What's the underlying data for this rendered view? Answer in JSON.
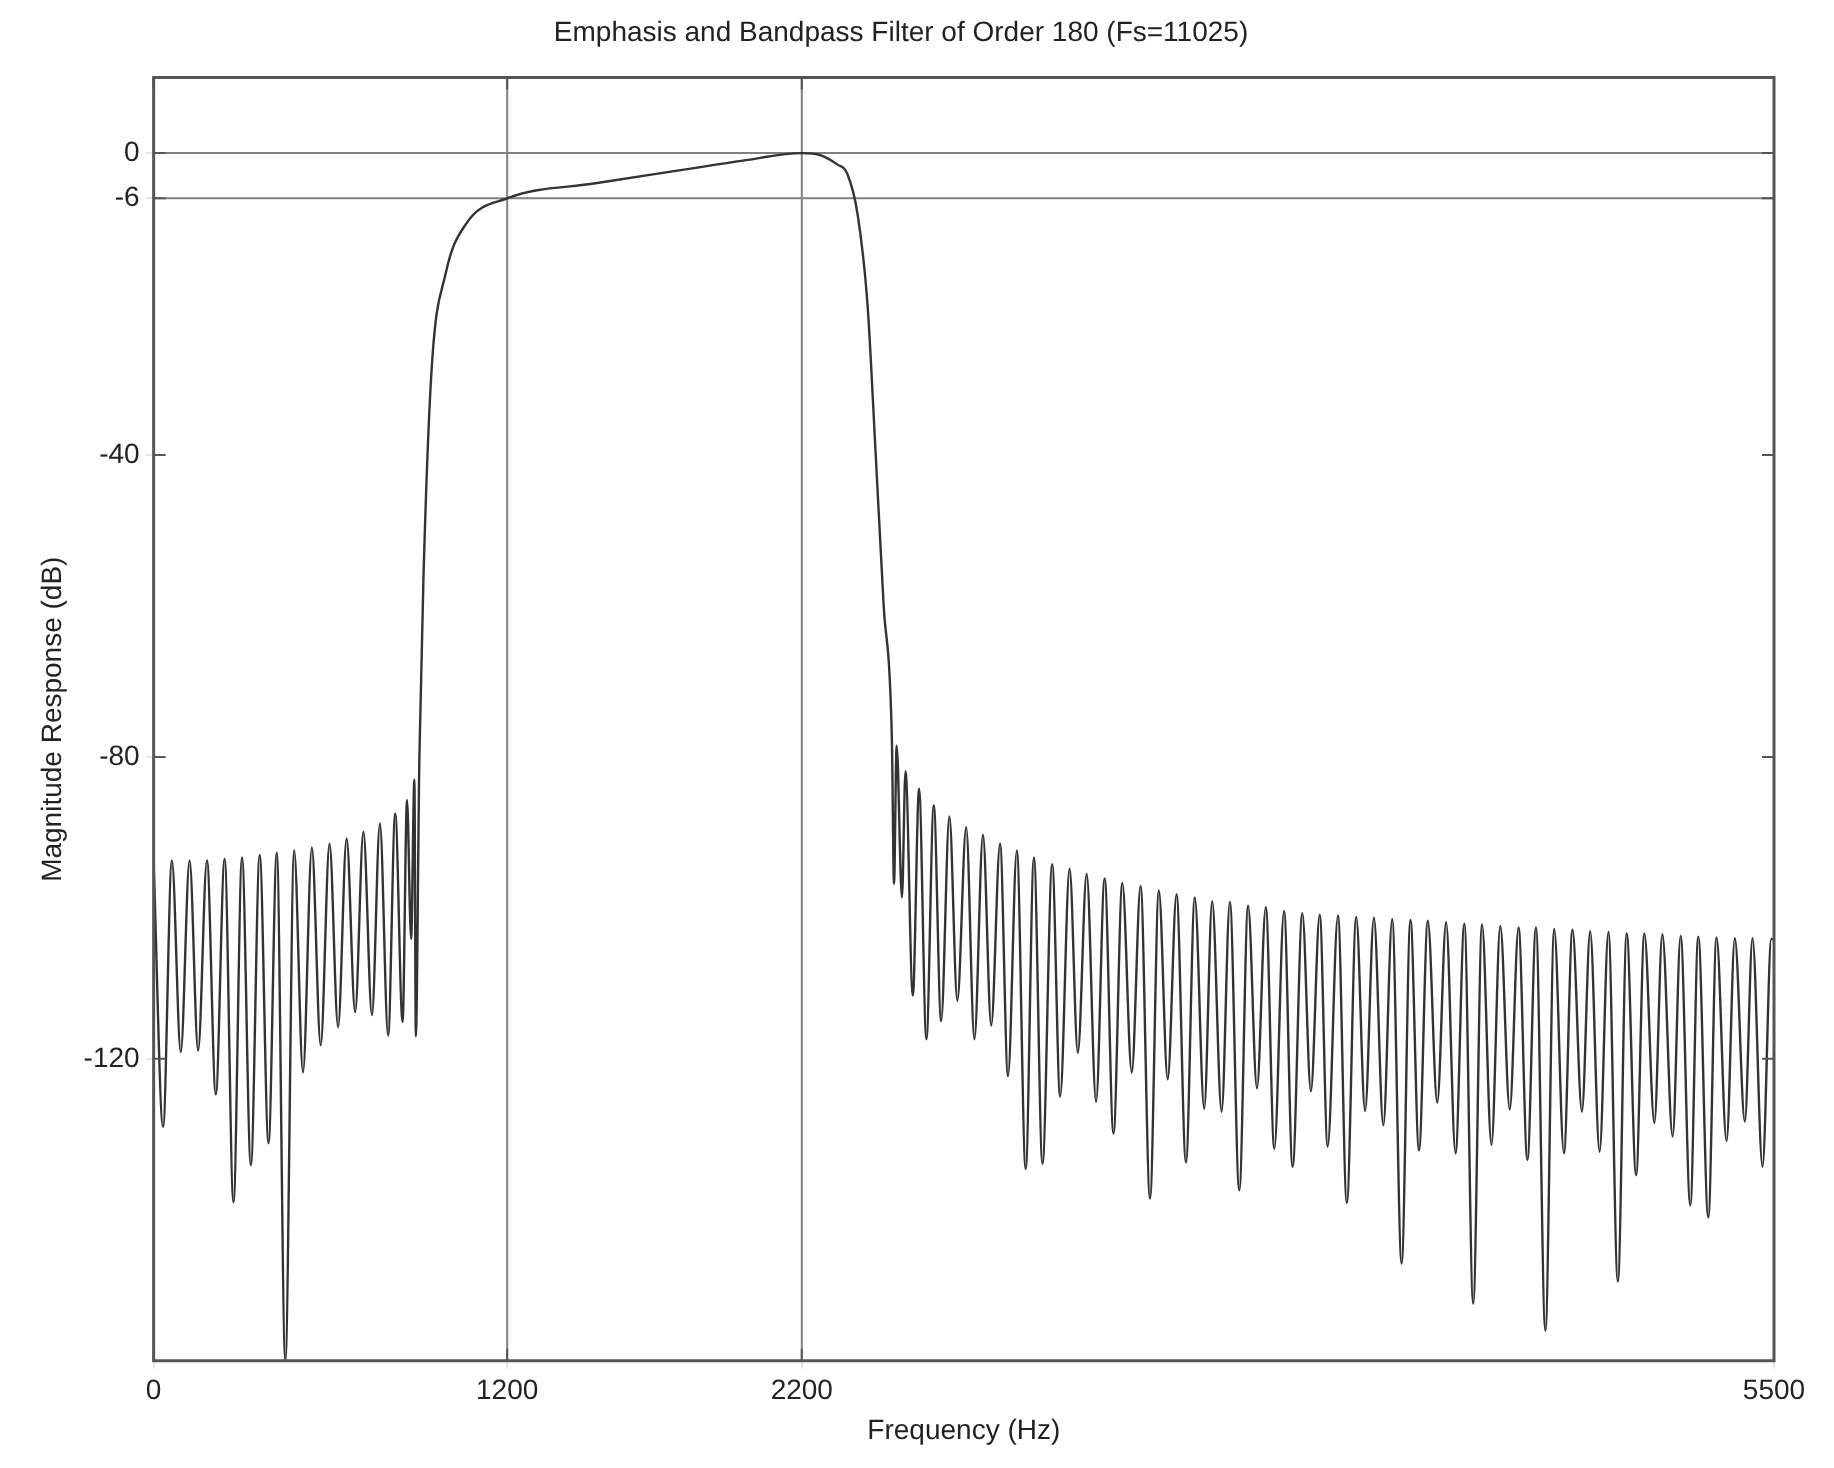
{
  "chart_data": {
    "type": "line",
    "title": "Emphasis and Bandpass Filter of Order 180 (Fs=11025)",
    "xlabel": "Frequency (Hz)",
    "ylabel": "Magnitude Response (dB)",
    "xlim": [
      0,
      5500
    ],
    "xticks": [
      0,
      1200,
      2200,
      5500
    ],
    "ylim": [
      -160,
      10
    ],
    "yticks": [
      0,
      -6,
      -40,
      -80,
      -120
    ],
    "grid": false,
    "marker": "none",
    "line_style": "solid",
    "ref_lines": [
      {
        "axis": "y",
        "value": 0,
        "color": "#808080"
      },
      {
        "axis": "y",
        "value": -6,
        "color": "#808080"
      },
      {
        "axis": "x",
        "value": 1200,
        "color": "#808080"
      },
      {
        "axis": "x",
        "value": 2200,
        "color": "#808080"
      }
    ],
    "series": [
      {
        "color": "#333333",
        "x": [
          0,
          32,
          62,
          92,
          122,
          151,
          181,
          211,
          241,
          271,
          300,
          330,
          360,
          390,
          418,
          447,
          477,
          507,
          537,
          567,
          597,
          626,
          655,
          684,
          712,
          741,
          768,
          796,
          820,
          845,
          860,
          874,
          885,
          890,
          902,
          916,
          943,
          991,
          1060,
          1200,
          1500,
          1800,
          2000,
          2200,
          2265,
          2320,
          2354,
          2389,
          2423,
          2451,
          2478,
          2506,
          2513,
          2522,
          2540,
          2552,
          2577,
          2598,
          2623,
          2648,
          2673,
          2701,
          2728,
          2758,
          2786,
          2815,
          2843,
          2873,
          2900,
          2930,
          2960,
          2988,
          3017,
          3050,
          3077,
          3109,
          3137,
          3167,
          3199,
          3228,
          3258,
          3288,
          3320,
          3350,
          3382,
          3412,
          3442,
          3472,
          3504,
          3534,
          3566,
          3593,
          3625,
          3653,
          3685,
          3715,
          3745,
          3775,
          3804,
          3837,
          3866,
          3899,
          3928,
          3958,
          3985,
          4020,
          4050,
          4082,
          4112,
          4142,
          4174,
          4204,
          4236,
          4266,
          4295,
          4325,
          4357,
          4387,
          4419,
          4449,
          4479,
          4509,
          4541,
          4571,
          4603,
          4633,
          4663,
          4692,
          4724,
          4754,
          4787,
          4816,
          4848,
          4876,
          4908,
          4938,
          4970,
          5000,
          5032,
          5060,
          5094,
          5121,
          5156,
          5183,
          5216,
          5243,
          5277,
          5305,
          5339,
          5367,
          5401,
          5427,
          5461,
          5491,
          5500
        ],
        "values": [
          -94.1,
          -129.0,
          -93.7,
          -119.1,
          -93.7,
          -118.9,
          -93.7,
          -124.7,
          -93.5,
          -139.0,
          -93.3,
          -134.1,
          -93.0,
          -131.2,
          -92.7,
          -160,
          -92.4,
          -121.8,
          -92.0,
          -118.2,
          -91.5,
          -115.8,
          -90.8,
          -113.8,
          -89.9,
          -114.2,
          -88.8,
          -116.9,
          -87.5,
          -115.1,
          -85.7,
          -104.1,
          -83.0,
          -117.0,
          -80,
          -56,
          -29,
          -16,
          -9.4,
          -6,
          -4,
          -2.2,
          -1,
          0,
          -0.3,
          -1.5,
          -2.7,
          -8,
          -20,
          -40,
          -60,
          -78,
          -96.8,
          -78.5,
          -98.6,
          -81.9,
          -111.6,
          -84.2,
          -117.4,
          -86.4,
          -115.0,
          -87.9,
          -112.3,
          -89.3,
          -117.4,
          -90.3,
          -115.6,
          -91.5,
          -122.3,
          -92.4,
          -134.6,
          -93.3,
          -133.9,
          -94.2,
          -125.0,
          -94.8,
          -119.2,
          -95.5,
          -125.7,
          -96.1,
          -129.9,
          -96.7,
          -121.8,
          -97.1,
          -138.5,
          -97.7,
          -122.7,
          -98.2,
          -133.7,
          -98.6,
          -126.6,
          -99.1,
          -127.0,
          -99.2,
          -137.4,
          -99.7,
          -123.9,
          -99.9,
          -131.9,
          -100.4,
          -134.3,
          -100.7,
          -124.3,
          -100.9,
          -131.6,
          -101.0,
          -139.1,
          -101.2,
          -126.9,
          -101.3,
          -128.8,
          -101.5,
          -147.1,
          -101.6,
          -132.1,
          -101.7,
          -125.8,
          -101.9,
          -132.5,
          -102.1,
          -152.4,
          -102.2,
          -131.4,
          -102.4,
          -126.7,
          -102.6,
          -133.4,
          -102.6,
          -156.0,
          -102.8,
          -132.5,
          -102.9,
          -127.0,
          -103.1,
          -132.3,
          -103.2,
          -149.5,
          -103.4,
          -135.4,
          -103.4,
          -128.5,
          -103.5,
          -130.3,
          -103.7,
          -139.4,
          -103.8,
          -141.0,
          -103.9,
          -130.9,
          -104.0,
          -128.3,
          -104.0,
          -134.3,
          -104.1,
          -104.2
        ]
      }
    ]
  }
}
